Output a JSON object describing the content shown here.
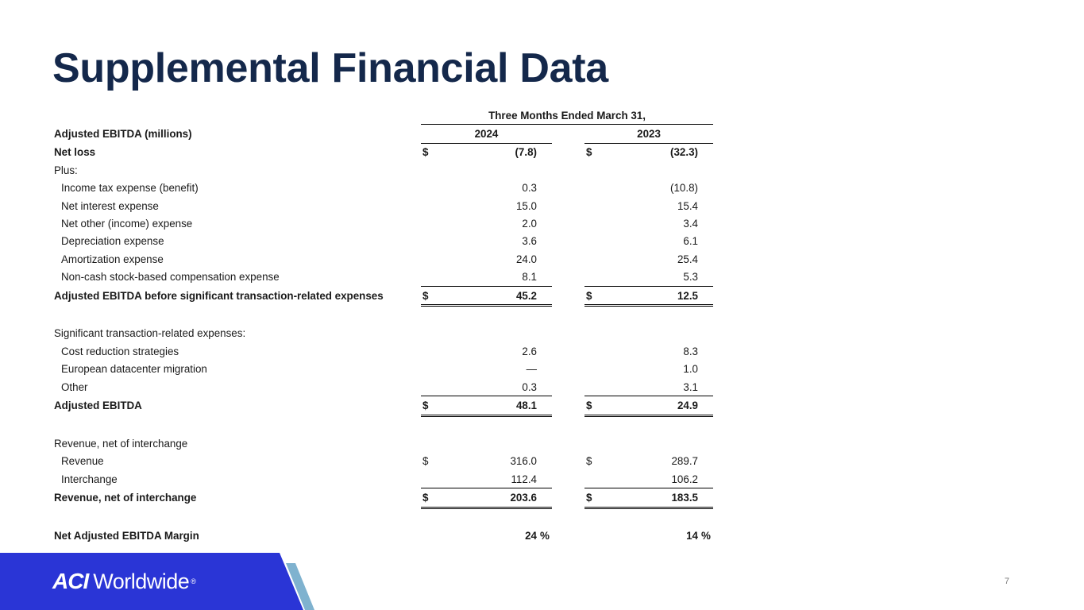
{
  "title": "Supplemental Financial Data",
  "table": {
    "period_header": "Three Months Ended March 31,",
    "section_label": "Adjusted EBITDA (millions)",
    "years": [
      "2024",
      "2023"
    ],
    "rows": [
      {
        "label": "Net loss",
        "sym1": "$",
        "v1": "(7.8)",
        "sym2": "$",
        "v2": "(32.3)"
      },
      {
        "label": "Plus:",
        "sym1": "",
        "v1": "",
        "sym2": "",
        "v2": ""
      },
      {
        "label": "Income tax expense (benefit)",
        "sym1": "",
        "v1": "0.3",
        "sym2": "",
        "v2": "(10.8)"
      },
      {
        "label": "Net interest expense",
        "sym1": "",
        "v1": "15.0",
        "sym2": "",
        "v2": "15.4"
      },
      {
        "label": "Net other (income) expense",
        "sym1": "",
        "v1": "2.0",
        "sym2": "",
        "v2": "3.4"
      },
      {
        "label": "Depreciation expense",
        "sym1": "",
        "v1": "3.6",
        "sym2": "",
        "v2": "6.1"
      },
      {
        "label": "Amortization expense",
        "sym1": "",
        "v1": "24.0",
        "sym2": "",
        "v2": "25.4"
      },
      {
        "label": "Non-cash stock-based compensation expense",
        "sym1": "",
        "v1": "8.1",
        "sym2": "",
        "v2": "5.3"
      },
      {
        "label": "Adjusted EBITDA before significant transaction-related expenses",
        "sym1": "$",
        "v1": "45.2",
        "sym2": "$",
        "v2": "12.5"
      },
      {
        "label": "Significant transaction-related expenses:",
        "sym1": "",
        "v1": "",
        "sym2": "",
        "v2": ""
      },
      {
        "label": "Cost reduction strategies",
        "sym1": "",
        "v1": "2.6",
        "sym2": "",
        "v2": "8.3"
      },
      {
        "label": "European datacenter migration",
        "sym1": "",
        "v1": "—",
        "sym2": "",
        "v2": "1.0"
      },
      {
        "label": "Other",
        "sym1": "",
        "v1": "0.3",
        "sym2": "",
        "v2": "3.1"
      },
      {
        "label": "Adjusted EBITDA",
        "sym1": "$",
        "v1": "48.1",
        "sym2": "$",
        "v2": "24.9"
      },
      {
        "label": "Revenue, net of interchange",
        "sym1": "",
        "v1": "",
        "sym2": "",
        "v2": ""
      },
      {
        "label": "Revenue",
        "sym1": "$",
        "v1": "316.0",
        "sym2": "$",
        "v2": "289.7"
      },
      {
        "label": "Interchange",
        "sym1": "",
        "v1": "112.4",
        "sym2": "",
        "v2": "106.2"
      },
      {
        "label": "Revenue, net of interchange",
        "sym1": "$",
        "v1": "203.6",
        "sym2": "$",
        "v2": "183.5"
      },
      {
        "label": "Net Adjusted EBITDA Margin",
        "sym1": "",
        "v1": "24",
        "pct1": "%",
        "sym2": "",
        "v2": "14",
        "pct2": "%"
      }
    ]
  },
  "footer": {
    "logo_mark": "ACI",
    "logo_word": "Worldwide",
    "logo_reg": "®",
    "page_number": "7"
  },
  "colors": {
    "title": "#14284b",
    "band_blue": "#2a35d6",
    "band_accent": "#7fb2cf"
  }
}
